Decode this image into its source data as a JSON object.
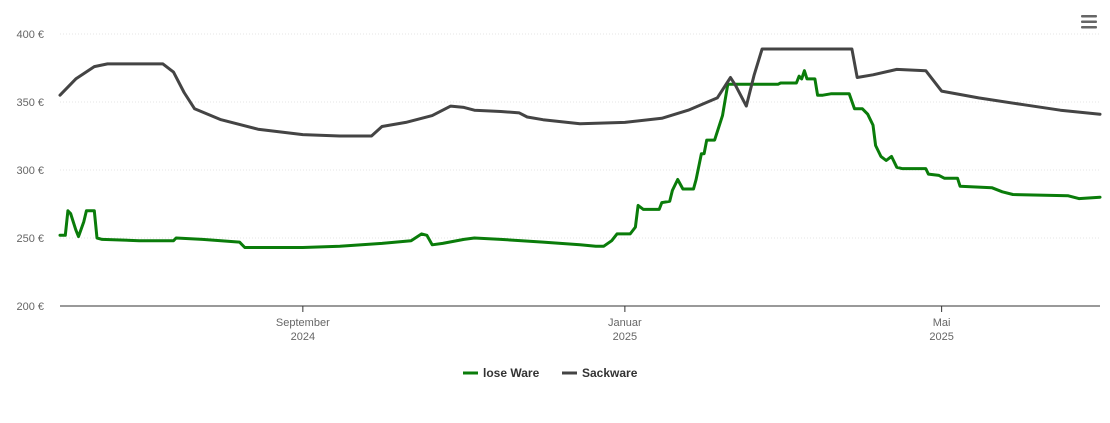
{
  "colors": {
    "lose_ware": "#0a7c0a",
    "sackware": "#444444",
    "grid": "#e6e6e6",
    "axis": "#333333"
  },
  "menu": {
    "icon": "hamburger-menu-icon"
  },
  "chart_data": {
    "type": "line",
    "title": "",
    "xlabel": "",
    "ylabel": "",
    "x_range": [
      "2024-06-01",
      "2025-06-30"
    ],
    "ylim": [
      200,
      400
    ],
    "y_ticks": [
      {
        "value": 200,
        "label": "200 €"
      },
      {
        "value": 250,
        "label": "250 €"
      },
      {
        "value": 300,
        "label": "300 €"
      },
      {
        "value": 350,
        "label": "350 €"
      },
      {
        "value": 400,
        "label": "400 €"
      }
    ],
    "x_ticks": [
      {
        "date": "2024-09-01",
        "month": "September",
        "year": "2024"
      },
      {
        "date": "2025-01-01",
        "month": "Januar",
        "year": "2025"
      },
      {
        "date": "2025-05-01",
        "month": "Mai",
        "year": "2025"
      }
    ],
    "grid": true,
    "legend_position": "bottom-center",
    "series": [
      {
        "name": "lose Ware",
        "color": "#0a7c0a",
        "points": [
          [
            "2024-06-01",
            252
          ],
          [
            "2024-06-03",
            252
          ],
          [
            "2024-06-04",
            270
          ],
          [
            "2024-06-05",
            268
          ],
          [
            "2024-06-07",
            256
          ],
          [
            "2024-06-08",
            251
          ],
          [
            "2024-06-10",
            262
          ],
          [
            "2024-06-11",
            270
          ],
          [
            "2024-06-14",
            270
          ],
          [
            "2024-06-15",
            250
          ],
          [
            "2024-06-17",
            249
          ],
          [
            "2024-07-01",
            248
          ],
          [
            "2024-07-14",
            248
          ],
          [
            "2024-07-15",
            250
          ],
          [
            "2024-07-25",
            249
          ],
          [
            "2024-08-08",
            247
          ],
          [
            "2024-08-10",
            243
          ],
          [
            "2024-09-01",
            243
          ],
          [
            "2024-09-15",
            244
          ],
          [
            "2024-10-01",
            246
          ],
          [
            "2024-10-12",
            248
          ],
          [
            "2024-10-16",
            253
          ],
          [
            "2024-10-18",
            252
          ],
          [
            "2024-10-20",
            245
          ],
          [
            "2024-10-24",
            246
          ],
          [
            "2024-11-01",
            249
          ],
          [
            "2024-11-05",
            250
          ],
          [
            "2024-11-15",
            249
          ],
          [
            "2024-12-01",
            247
          ],
          [
            "2024-12-15",
            245
          ],
          [
            "2024-12-21",
            244
          ],
          [
            "2024-12-24",
            244
          ],
          [
            "2024-12-27",
            248
          ],
          [
            "2024-12-29",
            253
          ],
          [
            "2025-01-03",
            253
          ],
          [
            "2025-01-05",
            258
          ],
          [
            "2025-01-06",
            274
          ],
          [
            "2025-01-08",
            271
          ],
          [
            "2025-01-14",
            271
          ],
          [
            "2025-01-15",
            276
          ],
          [
            "2025-01-18",
            277
          ],
          [
            "2025-01-19",
            285
          ],
          [
            "2025-01-21",
            293
          ],
          [
            "2025-01-23",
            286
          ],
          [
            "2025-01-27",
            286
          ],
          [
            "2025-01-28",
            293
          ],
          [
            "2025-01-30",
            312
          ],
          [
            "2025-01-31",
            312
          ],
          [
            "2025-02-01",
            322
          ],
          [
            "2025-02-04",
            322
          ],
          [
            "2025-02-07",
            340
          ],
          [
            "2025-02-09",
            363
          ],
          [
            "2025-02-28",
            363
          ],
          [
            "2025-03-01",
            364
          ],
          [
            "2025-03-07",
            364
          ],
          [
            "2025-03-08",
            369
          ],
          [
            "2025-03-09",
            367
          ],
          [
            "2025-03-10",
            373
          ],
          [
            "2025-03-11",
            367
          ],
          [
            "2025-03-14",
            367
          ],
          [
            "2025-03-15",
            355
          ],
          [
            "2025-03-17",
            355
          ],
          [
            "2025-03-20",
            356
          ],
          [
            "2025-03-27",
            356
          ],
          [
            "2025-03-29",
            345
          ],
          [
            "2025-04-01",
            345
          ],
          [
            "2025-04-03",
            341
          ],
          [
            "2025-04-05",
            333
          ],
          [
            "2025-04-06",
            318
          ],
          [
            "2025-04-08",
            310
          ],
          [
            "2025-04-10",
            307
          ],
          [
            "2025-04-12",
            310
          ],
          [
            "2025-04-14",
            302
          ],
          [
            "2025-04-16",
            301
          ],
          [
            "2025-04-25",
            301
          ],
          [
            "2025-04-26",
            297
          ],
          [
            "2025-04-30",
            296
          ],
          [
            "2025-05-02",
            294
          ],
          [
            "2025-05-07",
            294
          ],
          [
            "2025-05-08",
            288
          ],
          [
            "2025-05-20",
            287
          ],
          [
            "2025-05-24",
            284
          ],
          [
            "2025-05-28",
            282
          ],
          [
            "2025-06-18",
            281
          ],
          [
            "2025-06-22",
            279
          ],
          [
            "2025-06-30",
            280
          ]
        ]
      },
      {
        "name": "Sackware",
        "color": "#444444",
        "points": [
          [
            "2024-06-01",
            355
          ],
          [
            "2024-06-07",
            367
          ],
          [
            "2024-06-14",
            376
          ],
          [
            "2024-06-19",
            378
          ],
          [
            "2024-07-01",
            378
          ],
          [
            "2024-07-10",
            378
          ],
          [
            "2024-07-14",
            372
          ],
          [
            "2024-07-18",
            357
          ],
          [
            "2024-07-22",
            345
          ],
          [
            "2024-08-01",
            337
          ],
          [
            "2024-08-15",
            330
          ],
          [
            "2024-09-01",
            326
          ],
          [
            "2024-09-15",
            325
          ],
          [
            "2024-09-27",
            325
          ],
          [
            "2024-10-01",
            332
          ],
          [
            "2024-10-10",
            335
          ],
          [
            "2024-10-20",
            340
          ],
          [
            "2024-10-27",
            347
          ],
          [
            "2024-11-01",
            346
          ],
          [
            "2024-11-05",
            344
          ],
          [
            "2024-11-15",
            343
          ],
          [
            "2024-11-22",
            342
          ],
          [
            "2024-11-25",
            339
          ],
          [
            "2024-12-01",
            337
          ],
          [
            "2024-12-15",
            334
          ],
          [
            "2025-01-01",
            335
          ],
          [
            "2025-01-15",
            338
          ],
          [
            "2025-01-25",
            344
          ],
          [
            "2025-02-05",
            353
          ],
          [
            "2025-02-10",
            368
          ],
          [
            "2025-02-12",
            362
          ],
          [
            "2025-02-16",
            347
          ],
          [
            "2025-02-19",
            370
          ],
          [
            "2025-02-22",
            389
          ],
          [
            "2025-03-01",
            389
          ],
          [
            "2025-03-15",
            389
          ],
          [
            "2025-03-28",
            389
          ],
          [
            "2025-03-30",
            368
          ],
          [
            "2025-04-05",
            370
          ],
          [
            "2025-04-14",
            374
          ],
          [
            "2025-04-25",
            373
          ],
          [
            "2025-05-01",
            358
          ],
          [
            "2025-05-15",
            353
          ],
          [
            "2025-06-01",
            348
          ],
          [
            "2025-06-15",
            344
          ],
          [
            "2025-06-30",
            341
          ]
        ]
      }
    ]
  }
}
